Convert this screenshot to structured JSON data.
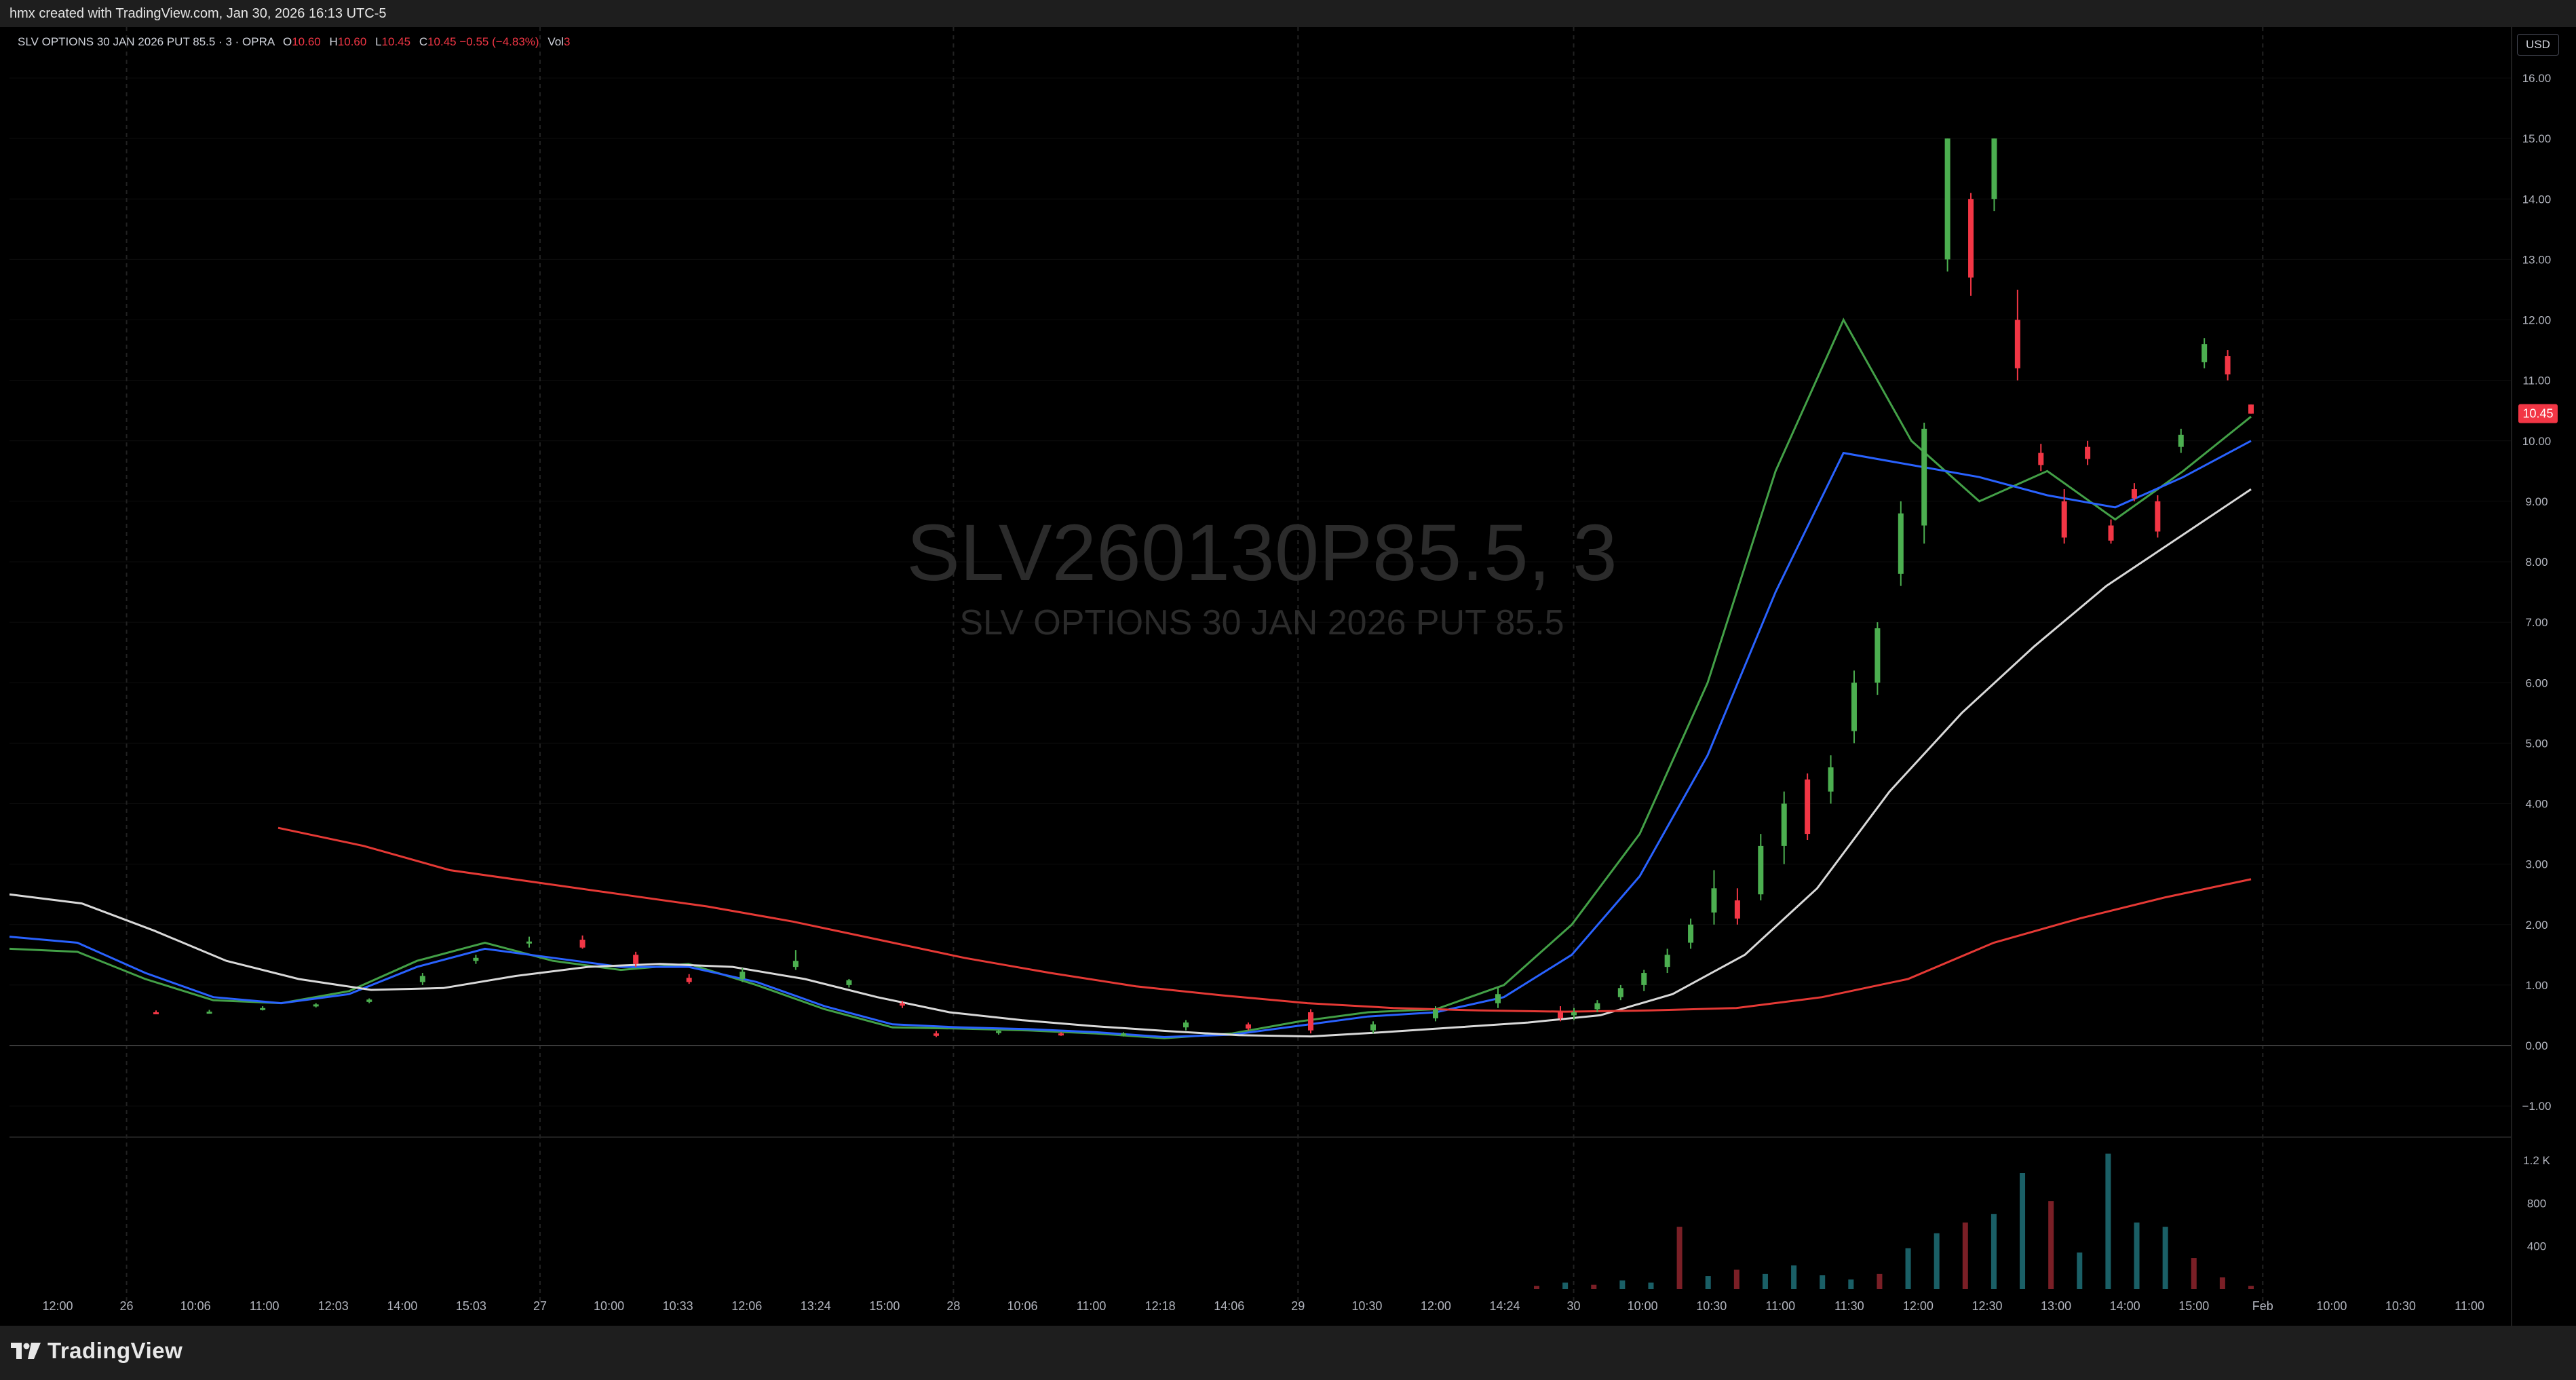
{
  "header": {
    "caption": "hmx created with TradingView.com, Jan 30, 2026 16:13 UTC-5"
  },
  "legend": {
    "symbol": "SLV OPTIONS 30 JAN 2026 PUT 85.5 · 3 · OPRA",
    "o_label": "O",
    "o_value": "10.60",
    "h_label": "H",
    "h_value": "10.60",
    "l_label": "L",
    "l_value": "10.45",
    "c_label": "C",
    "c_value": "10.45",
    "change": "−0.55 (−4.83%)",
    "vol_label": "Vol",
    "vol_value": "3"
  },
  "currency": "USD",
  "watermark": {
    "title": "SLV260130P85.5, 3",
    "subtitle": "SLV OPTIONS 30 JAN 2026 PUT 85.5"
  },
  "brand": "TradingView",
  "colors": {
    "up": "#4caf50",
    "down": "#f23645",
    "vol_up": "#1a5f66",
    "vol_down": "#7a1f26",
    "ma_green": "#43a047",
    "ma_blue": "#2962ff",
    "ma_white": "#d9d9d9",
    "ma_red": "#e53935",
    "axis_text": "#b2b5be",
    "grid": "#2a2a2a"
  },
  "chart_data": {
    "type": "candlestick",
    "y_axis": {
      "min": -1.5,
      "max": 16.5,
      "ticks": [
        "16.00",
        "15.00",
        "14.00",
        "13.00",
        "12.00",
        "11.00",
        "10.00",
        "9.00",
        "8.00",
        "7.00",
        "6.00",
        "5.00",
        "4.00",
        "3.00",
        "2.00",
        "1.00",
        "0.00",
        "−1.00"
      ]
    },
    "last_price": "10.45",
    "volume_axis": {
      "max": 1400,
      "ticks": [
        "1.2 K",
        "800",
        "400"
      ]
    },
    "x_ticks": [
      "12:00",
      "26",
      "10:06",
      "11:00",
      "12:03",
      "14:00",
      "15:03",
      "27",
      "10:00",
      "10:33",
      "12:06",
      "13:24",
      "15:00",
      "28",
      "10:06",
      "11:00",
      "12:18",
      "14:06",
      "29",
      "10:30",
      "12:00",
      "14:24",
      "30",
      "10:00",
      "10:30",
      "11:00",
      "11:30",
      "12:00",
      "12:30",
      "13:00",
      "14:00",
      "15:00",
      "Feb",
      "10:00",
      "10:30",
      "11:00"
    ],
    "candles": [
      {
        "o": 0.55,
        "h": 0.58,
        "l": 0.52,
        "c": 0.54
      },
      {
        "o": 0.56,
        "h": 0.59,
        "l": 0.53,
        "c": 0.56
      },
      {
        "o": 0.62,
        "h": 0.65,
        "l": 0.58,
        "c": 0.62
      },
      {
        "o": 0.66,
        "h": 0.7,
        "l": 0.63,
        "c": 0.68
      },
      {
        "o": 0.72,
        "h": 0.78,
        "l": 0.7,
        "c": 0.76
      },
      {
        "o": 1.05,
        "h": 1.2,
        "l": 1.0,
        "c": 1.15
      },
      {
        "o": 1.4,
        "h": 1.5,
        "l": 1.35,
        "c": 1.45
      },
      {
        "o": 1.7,
        "h": 1.8,
        "l": 1.62,
        "c": 1.72
      },
      {
        "o": 1.75,
        "h": 1.82,
        "l": 1.6,
        "c": 1.62
      },
      {
        "o": 1.5,
        "h": 1.55,
        "l": 1.3,
        "c": 1.35
      },
      {
        "o": 1.12,
        "h": 1.18,
        "l": 1.02,
        "c": 1.05
      },
      {
        "o": 1.1,
        "h": 1.28,
        "l": 1.05,
        "c": 1.22
      },
      {
        "o": 1.3,
        "h": 1.58,
        "l": 1.25,
        "c": 1.4
      },
      {
        "o": 1.0,
        "h": 1.1,
        "l": 0.96,
        "c": 1.08
      },
      {
        "o": 0.7,
        "h": 0.74,
        "l": 0.62,
        "c": 0.66
      },
      {
        "o": 0.2,
        "h": 0.24,
        "l": 0.14,
        "c": 0.16
      },
      {
        "o": 0.22,
        "h": 0.26,
        "l": 0.18,
        "c": 0.24
      },
      {
        "o": 0.2,
        "h": 0.22,
        "l": 0.16,
        "c": 0.18
      },
      {
        "o": 0.18,
        "h": 0.22,
        "l": 0.15,
        "c": 0.2
      },
      {
        "o": 0.3,
        "h": 0.42,
        "l": 0.25,
        "c": 0.38
      },
      {
        "o": 0.35,
        "h": 0.38,
        "l": 0.25,
        "c": 0.28
      },
      {
        "o": 0.55,
        "h": 0.6,
        "l": 0.2,
        "c": 0.25
      },
      {
        "o": 0.25,
        "h": 0.4,
        "l": 0.2,
        "c": 0.35
      },
      {
        "o": 0.45,
        "h": 0.65,
        "l": 0.4,
        "c": 0.6
      },
      {
        "o": 0.7,
        "h": 0.95,
        "l": 0.62,
        "c": 0.85
      },
      {
        "o": 0.55,
        "h": 0.65,
        "l": 0.4,
        "c": 0.45
      },
      {
        "o": 0.5,
        "h": 0.62,
        "l": 0.42,
        "c": 0.55
      },
      {
        "o": 0.6,
        "h": 0.75,
        "l": 0.55,
        "c": 0.7
      },
      {
        "o": 0.8,
        "h": 1.0,
        "l": 0.75,
        "c": 0.95
      },
      {
        "o": 1.0,
        "h": 1.25,
        "l": 0.9,
        "c": 1.2
      },
      {
        "o": 1.3,
        "h": 1.6,
        "l": 1.2,
        "c": 1.5
      },
      {
        "o": 1.7,
        "h": 2.1,
        "l": 1.6,
        "c": 2.0
      },
      {
        "o": 2.2,
        "h": 2.9,
        "l": 2.0,
        "c": 2.6
      },
      {
        "o": 2.4,
        "h": 2.6,
        "l": 2.0,
        "c": 2.1
      },
      {
        "o": 2.5,
        "h": 3.5,
        "l": 2.4,
        "c": 3.3
      },
      {
        "o": 3.3,
        "h": 4.2,
        "l": 3.0,
        "c": 4.0
      },
      {
        "o": 4.4,
        "h": 4.5,
        "l": 3.4,
        "c": 3.5
      },
      {
        "o": 4.2,
        "h": 4.8,
        "l": 4.0,
        "c": 4.6
      },
      {
        "o": 5.2,
        "h": 6.2,
        "l": 5.0,
        "c": 6.0
      },
      {
        "o": 6.0,
        "h": 7.0,
        "l": 5.8,
        "c": 6.9
      },
      {
        "o": 7.8,
        "h": 9.0,
        "l": 7.6,
        "c": 8.8
      },
      {
        "o": 8.6,
        "h": 10.3,
        "l": 8.3,
        "c": 10.2
      },
      {
        "o": 13.0,
        "h": 15.0,
        "l": 12.8,
        "c": 15.0
      },
      {
        "o": 14.0,
        "h": 14.1,
        "l": 12.4,
        "c": 12.7
      },
      {
        "o": 14.0,
        "h": 15.0,
        "l": 13.8,
        "c": 15.0
      },
      {
        "o": 12.0,
        "h": 12.5,
        "l": 11.0,
        "c": 11.2
      },
      {
        "o": 9.8,
        "h": 9.95,
        "l": 9.5,
        "c": 9.6
      },
      {
        "o": 9.0,
        "h": 9.2,
        "l": 8.3,
        "c": 8.4
      },
      {
        "o": 9.9,
        "h": 10.0,
        "l": 9.6,
        "c": 9.7
      },
      {
        "o": 8.6,
        "h": 8.7,
        "l": 8.3,
        "c": 8.35
      },
      {
        "o": 9.2,
        "h": 9.3,
        "l": 9.0,
        "c": 9.05
      },
      {
        "o": 9.0,
        "h": 9.1,
        "l": 8.4,
        "c": 8.5
      },
      {
        "o": 9.9,
        "h": 10.2,
        "l": 9.8,
        "c": 10.1
      },
      {
        "o": 11.3,
        "h": 11.7,
        "l": 11.2,
        "c": 11.6
      },
      {
        "o": 11.4,
        "h": 11.5,
        "l": 11.0,
        "c": 11.1
      },
      {
        "o": 10.6,
        "h": 10.6,
        "l": 10.45,
        "c": 10.45
      }
    ],
    "volumes": [
      {
        "v": 30,
        "up": false
      },
      {
        "v": 60,
        "up": true
      },
      {
        "v": 40,
        "up": false
      },
      {
        "v": 80,
        "up": true
      },
      {
        "v": 60,
        "up": true
      },
      {
        "v": 580,
        "up": false
      },
      {
        "v": 120,
        "up": true
      },
      {
        "v": 180,
        "up": false
      },
      {
        "v": 140,
        "up": true
      },
      {
        "v": 220,
        "up": true
      },
      {
        "v": 130,
        "up": true
      },
      {
        "v": 90,
        "up": true
      },
      {
        "v": 140,
        "up": false
      },
      {
        "v": 380,
        "up": true
      },
      {
        "v": 520,
        "up": true
      },
      {
        "v": 620,
        "up": false
      },
      {
        "v": 700,
        "up": true
      },
      {
        "v": 1080,
        "up": true
      },
      {
        "v": 820,
        "up": false
      },
      {
        "v": 340,
        "up": true
      },
      {
        "v": 1260,
        "up": true
      },
      {
        "v": 620,
        "up": true
      },
      {
        "v": 580,
        "up": true
      },
      {
        "v": 290,
        "up": false
      },
      {
        "v": 110,
        "up": false
      },
      {
        "v": 30,
        "up": false
      }
    ],
    "moving_averages": [
      {
        "color": "ma_green",
        "values": [
          1.6,
          1.55,
          1.1,
          0.75,
          0.7,
          0.9,
          1.4,
          1.7,
          1.4,
          1.25,
          1.35,
          1.0,
          0.6,
          0.3,
          0.28,
          0.25,
          0.2,
          0.12,
          0.2,
          0.4,
          0.55,
          0.6,
          1.0,
          2.0,
          3.5,
          6.0,
          9.5,
          12.0,
          10.0,
          9.0,
          9.5,
          8.7,
          9.5,
          10.4
        ]
      },
      {
        "color": "ma_blue",
        "values": [
          1.8,
          1.7,
          1.2,
          0.8,
          0.7,
          0.85,
          1.3,
          1.6,
          1.45,
          1.3,
          1.3,
          1.05,
          0.65,
          0.35,
          0.3,
          0.27,
          0.22,
          0.14,
          0.18,
          0.33,
          0.48,
          0.55,
          0.8,
          1.5,
          2.8,
          4.8,
          7.5,
          9.8,
          9.6,
          9.4,
          9.1,
          8.9,
          9.4,
          10.0
        ]
      },
      {
        "color": "ma_white",
        "values": [
          2.5,
          2.35,
          1.9,
          1.4,
          1.1,
          0.92,
          0.95,
          1.15,
          1.3,
          1.35,
          1.3,
          1.1,
          0.8,
          0.55,
          0.42,
          0.32,
          0.24,
          0.17,
          0.15,
          0.22,
          0.3,
          0.38,
          0.5,
          0.85,
          1.5,
          2.6,
          4.2,
          5.5,
          6.6,
          7.6,
          8.4,
          9.2
        ]
      },
      {
        "color": "ma_red",
        "values": [
          3.6,
          3.3,
          2.9,
          2.7,
          2.5,
          2.3,
          2.05,
          1.75,
          1.45,
          1.2,
          0.98,
          0.83,
          0.7,
          0.62,
          0.58,
          0.56,
          0.58,
          0.62,
          0.8,
          1.1,
          1.7,
          2.1,
          2.45,
          2.75
        ]
      }
    ]
  }
}
